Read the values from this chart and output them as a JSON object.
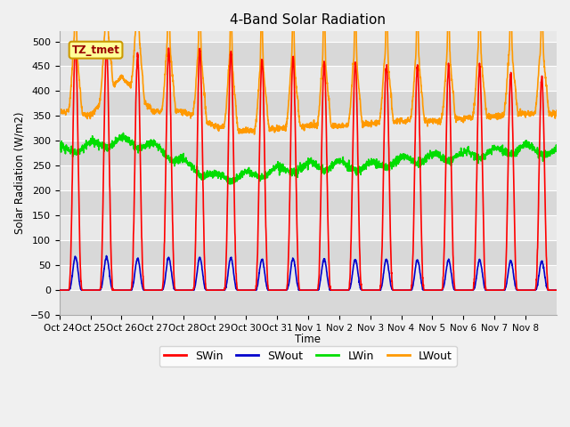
{
  "title": "4-Band Solar Radiation",
  "xlabel": "Time",
  "ylabel": "Solar Radiation (W/m2)",
  "ylim": [
    -50,
    520
  ],
  "yticks": [
    -50,
    0,
    50,
    100,
    150,
    200,
    250,
    300,
    350,
    400,
    450,
    500
  ],
  "label_box": "TZ_tmet",
  "colors": {
    "SWin": "#ff0000",
    "SWout": "#0000cc",
    "LWin": "#00dd00",
    "LWout": "#ff9900"
  },
  "line_widths": {
    "SWin": 1.2,
    "SWout": 1.2,
    "LWin": 1.2,
    "LWout": 1.2
  },
  "fig_bg_color": "#f0f0f0",
  "plot_bg_light": "#e8e8e8",
  "plot_bg_dark": "#d8d8d8",
  "grid_color": "#ffffff",
  "xtick_labels": [
    "Oct 24",
    "Oct 25",
    "Oct 26",
    "Oct 27",
    "Oct 28",
    "Oct 29",
    "Oct 30",
    "Oct 31",
    "Nov 1",
    "Nov 2",
    "Nov 3",
    "Nov 4",
    "Nov 5",
    "Nov 6",
    "Nov 7",
    "Nov 8"
  ],
  "legend_entries": [
    "SWin",
    "SWout",
    "LWin",
    "LWout"
  ]
}
